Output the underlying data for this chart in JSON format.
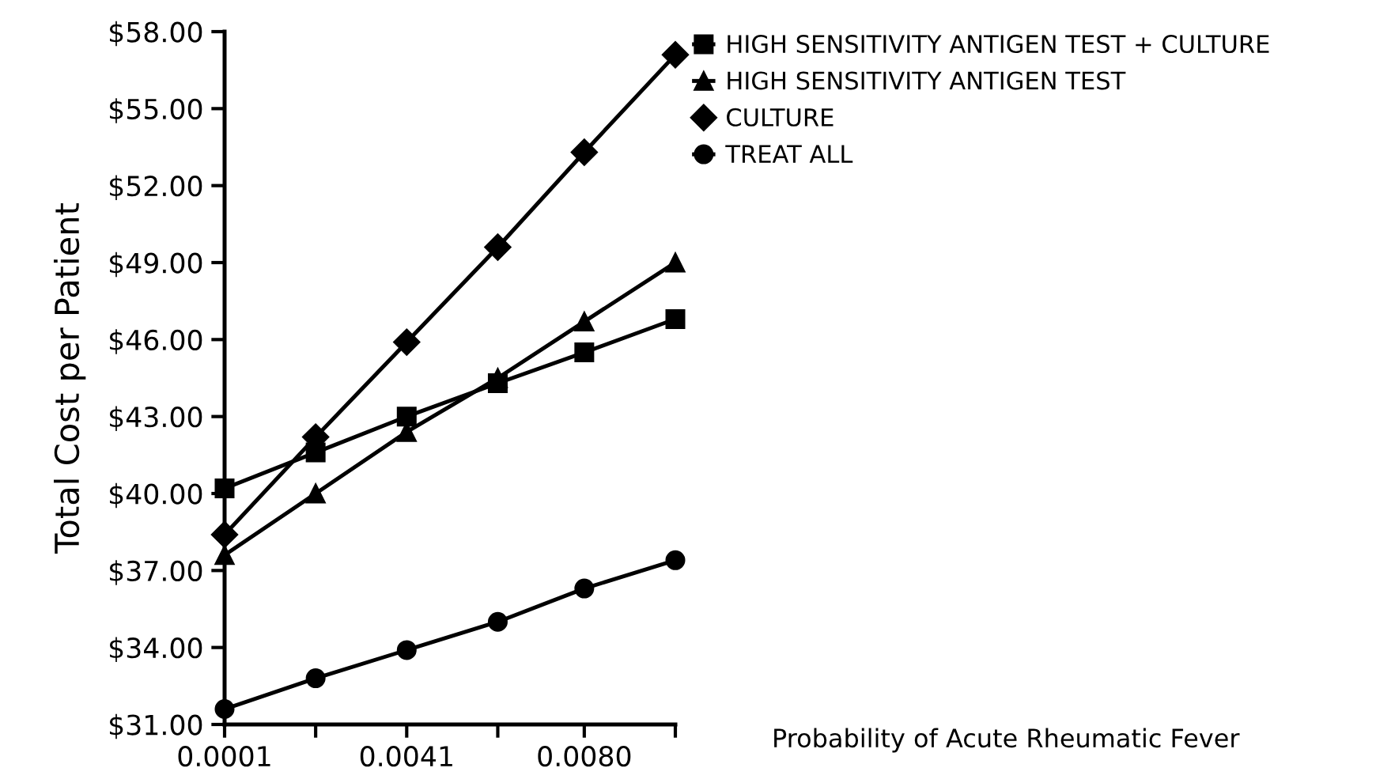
{
  "chart_data": {
    "type": "line",
    "xlabel": "Probability of Acute Rheumatic Fever",
    "ylabel": "Total Cost per Patient",
    "x": [
      0.0001,
      0.0021,
      0.0041,
      0.0061,
      0.008,
      0.01
    ],
    "series": [
      {
        "name": "HIGH SENSITIVITY ANTIGEN TEST + CULTURE",
        "color": "#000000",
        "marker": "square",
        "values": [
          40.2,
          41.6,
          43.0,
          44.3,
          45.5,
          46.8
        ]
      },
      {
        "name": "HIGH SENSITIVITY ANTIGEN TEST",
        "color": "#000000",
        "marker": "triangle",
        "values": [
          37.6,
          40.0,
          42.4,
          44.5,
          46.7,
          49.0
        ]
      },
      {
        "name": "CULTURE",
        "color": "#000000",
        "marker": "diamond",
        "values": [
          38.4,
          42.2,
          45.9,
          49.6,
          53.3,
          57.1
        ]
      },
      {
        "name": "TREAT ALL",
        "color": "#000000",
        "marker": "circle",
        "values": [
          31.6,
          32.8,
          33.9,
          35.0,
          36.3,
          37.4
        ]
      }
    ],
    "xlim": [
      0.0001,
      0.01
    ],
    "xticks": [
      {
        "value": 0.0001,
        "label": "0.0001"
      },
      {
        "value": 0.0021,
        "label": null
      },
      {
        "value": 0.0041,
        "label": "0.0041"
      },
      {
        "value": 0.0061,
        "label": null
      },
      {
        "value": 0.008,
        "label": "0.0080"
      },
      {
        "value": 0.01,
        "label": null
      }
    ],
    "ylim": [
      31,
      58
    ],
    "yticks": [
      {
        "value": 31,
        "label": "$31.00"
      },
      {
        "value": 34,
        "label": "$34.00"
      },
      {
        "value": 37,
        "label": "$37.00"
      },
      {
        "value": 40,
        "label": "$40.00"
      },
      {
        "value": 43,
        "label": "$43.00"
      },
      {
        "value": 46,
        "label": "$46.00"
      },
      {
        "value": 49,
        "label": "$49.00"
      },
      {
        "value": 52,
        "label": "$52.00"
      },
      {
        "value": 55,
        "label": "$55.00"
      },
      {
        "value": 58,
        "label": "$58.00"
      }
    ],
    "grid": false,
    "legend": "top right",
    "line_style": "solid"
  }
}
